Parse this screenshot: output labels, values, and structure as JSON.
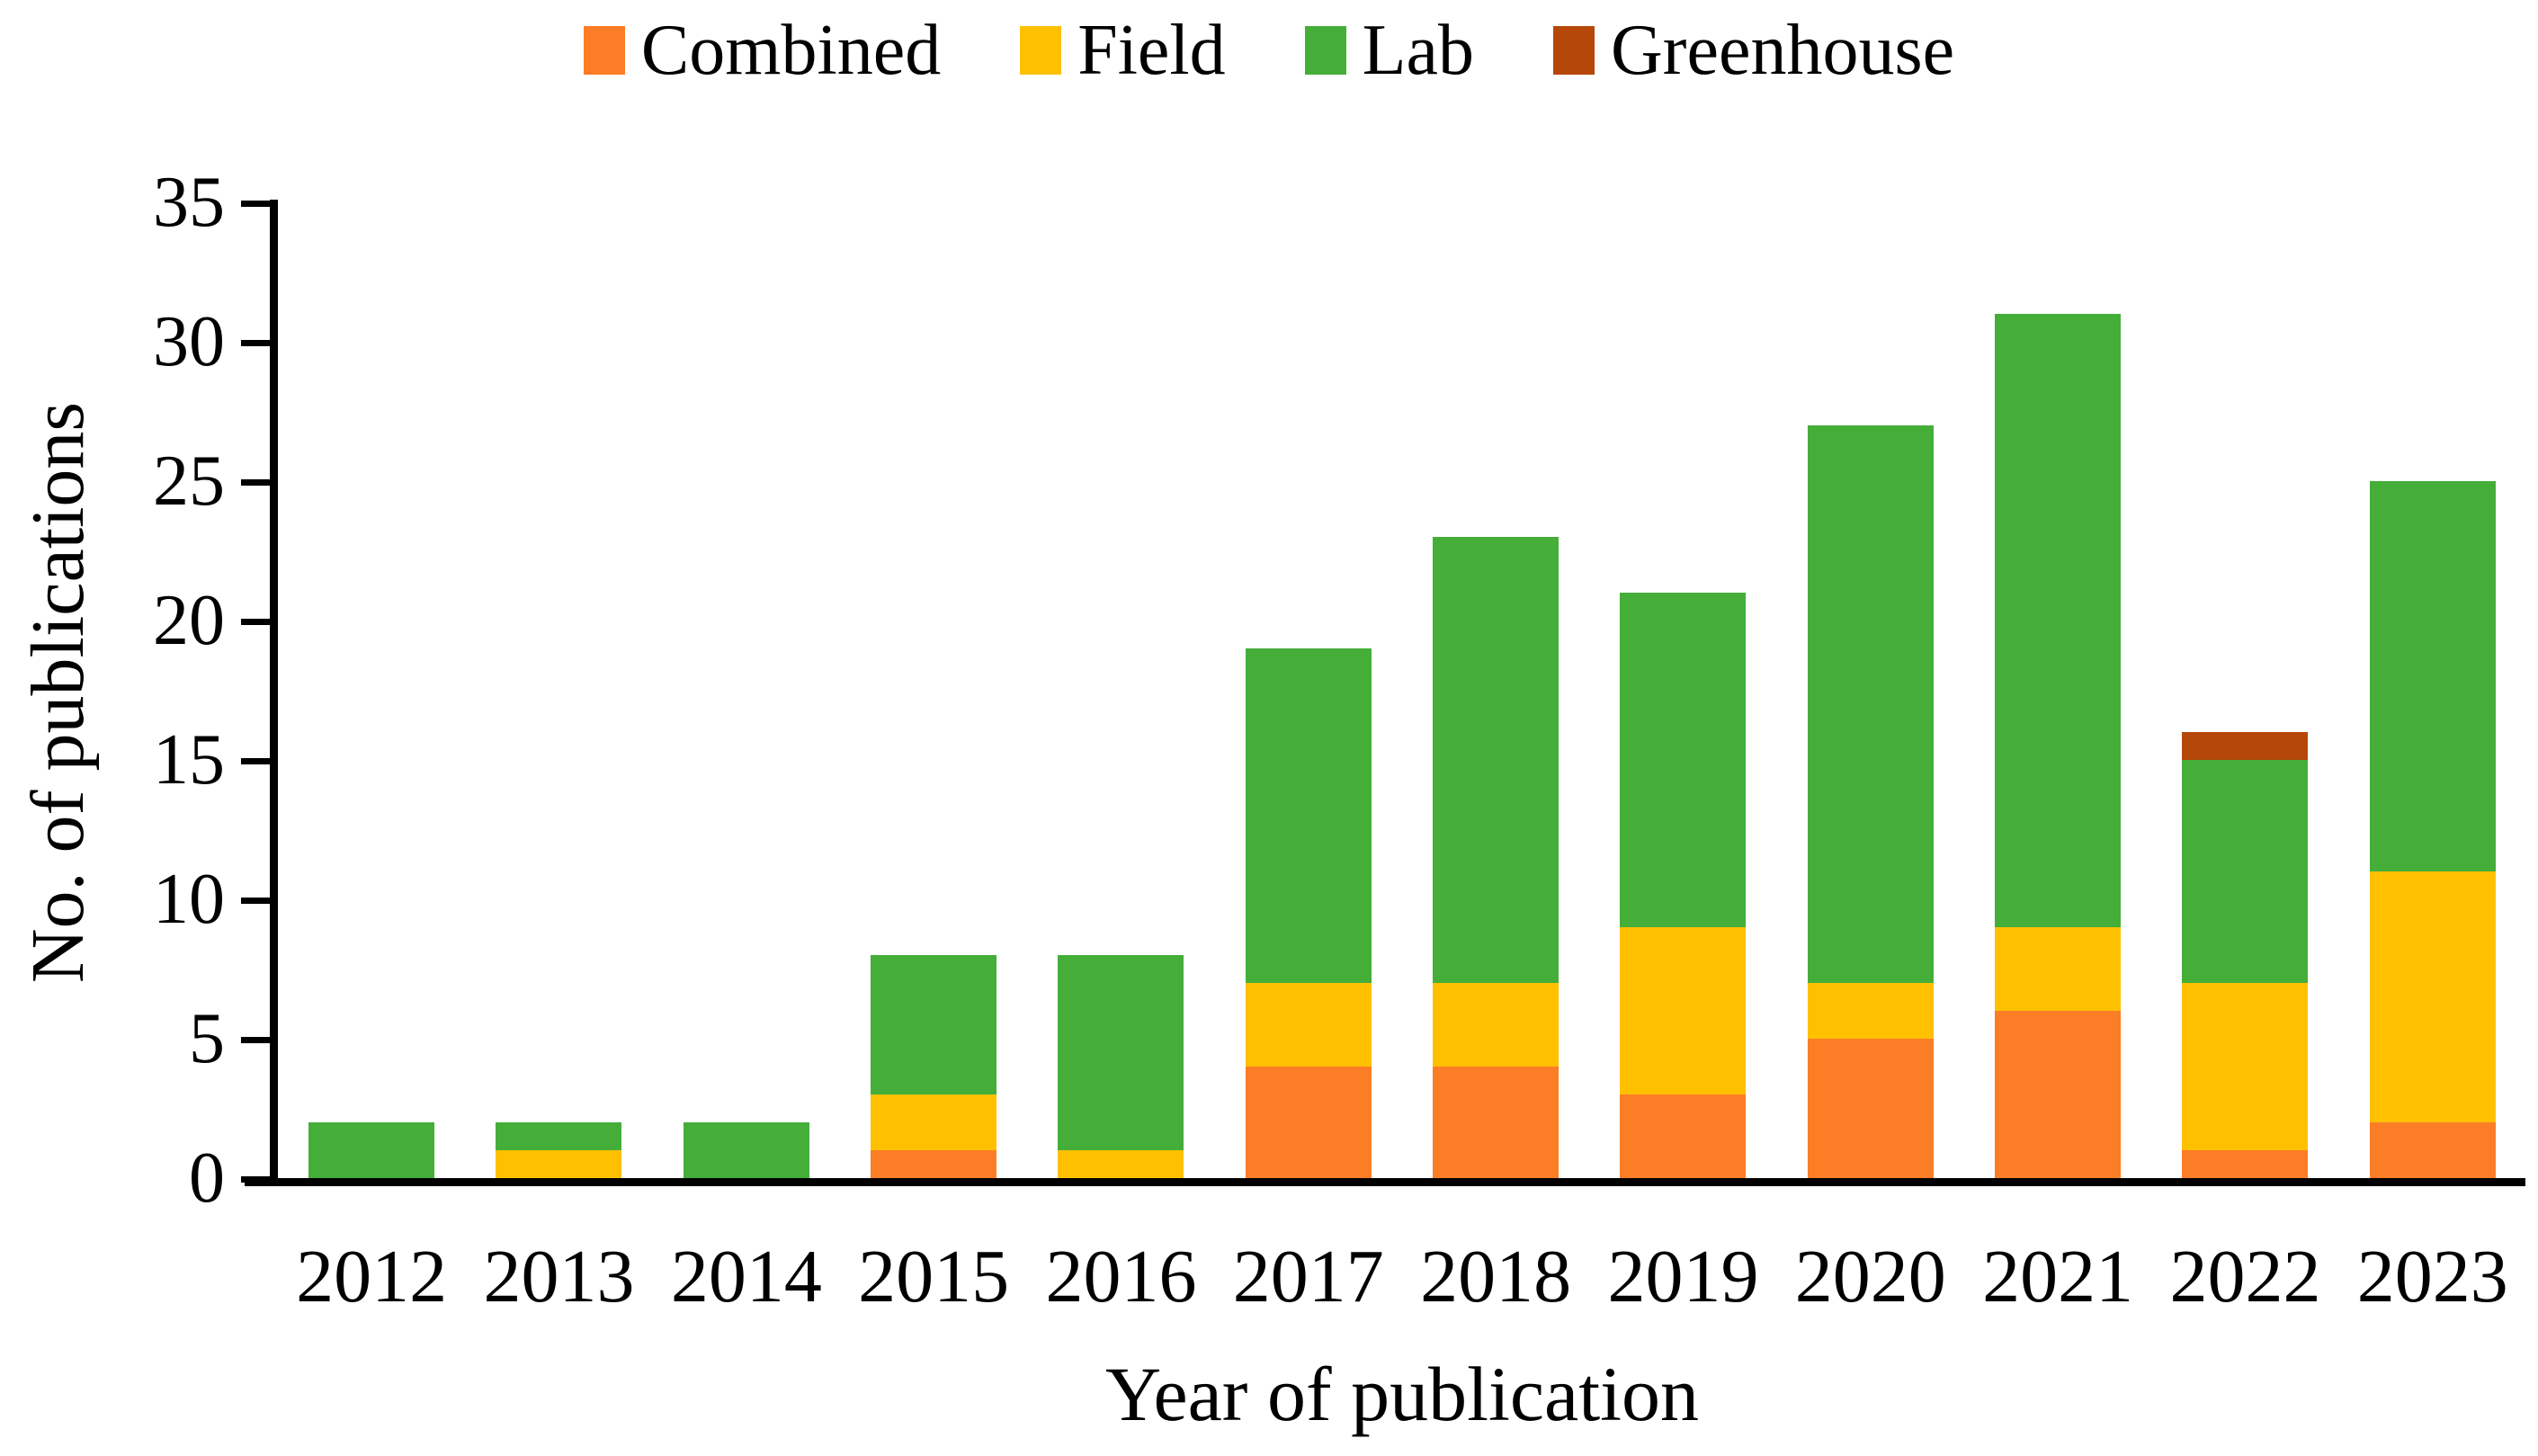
{
  "chart_data": {
    "type": "bar",
    "stacked": true,
    "title": "",
    "categories": [
      "2012",
      "2013",
      "2014",
      "2015",
      "2016",
      "2017",
      "2018",
      "2019",
      "2020",
      "2021",
      "2022",
      "2023"
    ],
    "series": [
      {
        "name": "Combined",
        "color": "#FB7D26",
        "values": [
          0,
          0,
          0,
          1,
          0,
          4,
          4,
          3,
          5,
          6,
          1,
          2
        ]
      },
      {
        "name": "Field",
        "color": "#FFC000",
        "values": [
          0,
          1,
          0,
          2,
          1,
          3,
          3,
          6,
          2,
          3,
          6,
          9
        ]
      },
      {
        "name": "Lab",
        "color": "#44AE39",
        "values": [
          2,
          1,
          2,
          5,
          7,
          12,
          16,
          12,
          20,
          22,
          8,
          14
        ]
      },
      {
        "name": "Greenhouse",
        "color": "#B54708",
        "values": [
          0,
          0,
          0,
          0,
          0,
          0,
          0,
          0,
          0,
          0,
          1,
          0
        ]
      }
    ],
    "totals": [
      2,
      2,
      2,
      8,
      8,
      19,
      23,
      21,
      27,
      31,
      16,
      25
    ],
    "xlabel": "Year of publication",
    "ylabel": "No. of publications",
    "ylim": [
      0,
      35
    ],
    "ytick_step": 5,
    "yticks": [
      0,
      5,
      10,
      15,
      20,
      25,
      30,
      35
    ],
    "legend_position": "top",
    "grid": false,
    "axis_color": "#000000",
    "background_color": "#ffffff",
    "text_color": "#000000"
  }
}
